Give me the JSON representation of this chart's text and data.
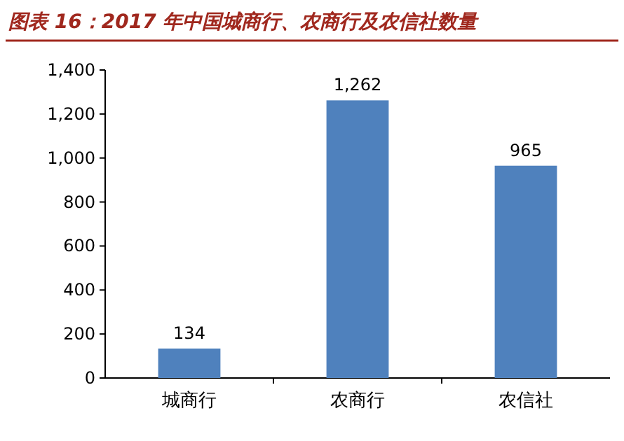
{
  "chart_data": {
    "type": "bar",
    "title": "图表 16：2017 年中国城商行、农商行及农信社数量",
    "categories": [
      "城商行",
      "农商行",
      "农信社"
    ],
    "values": [
      134,
      1262,
      965
    ],
    "value_labels": [
      "134",
      "1,262",
      "965"
    ],
    "color": "#4f81bd",
    "ylim": [
      0,
      1400
    ],
    "yticks": [
      0,
      {
        "value": 200,
        "label": "200"
      },
      {
        "value": 400,
        "label": "400"
      },
      {
        "value": 600,
        "label": "600"
      },
      {
        "value": 800,
        "label": "800"
      },
      {
        "value": 1000,
        "label": "1,000"
      },
      {
        "value": 1200,
        "label": "1,200"
      },
      {
        "value": 1400,
        "label": "1,400"
      }
    ]
  }
}
